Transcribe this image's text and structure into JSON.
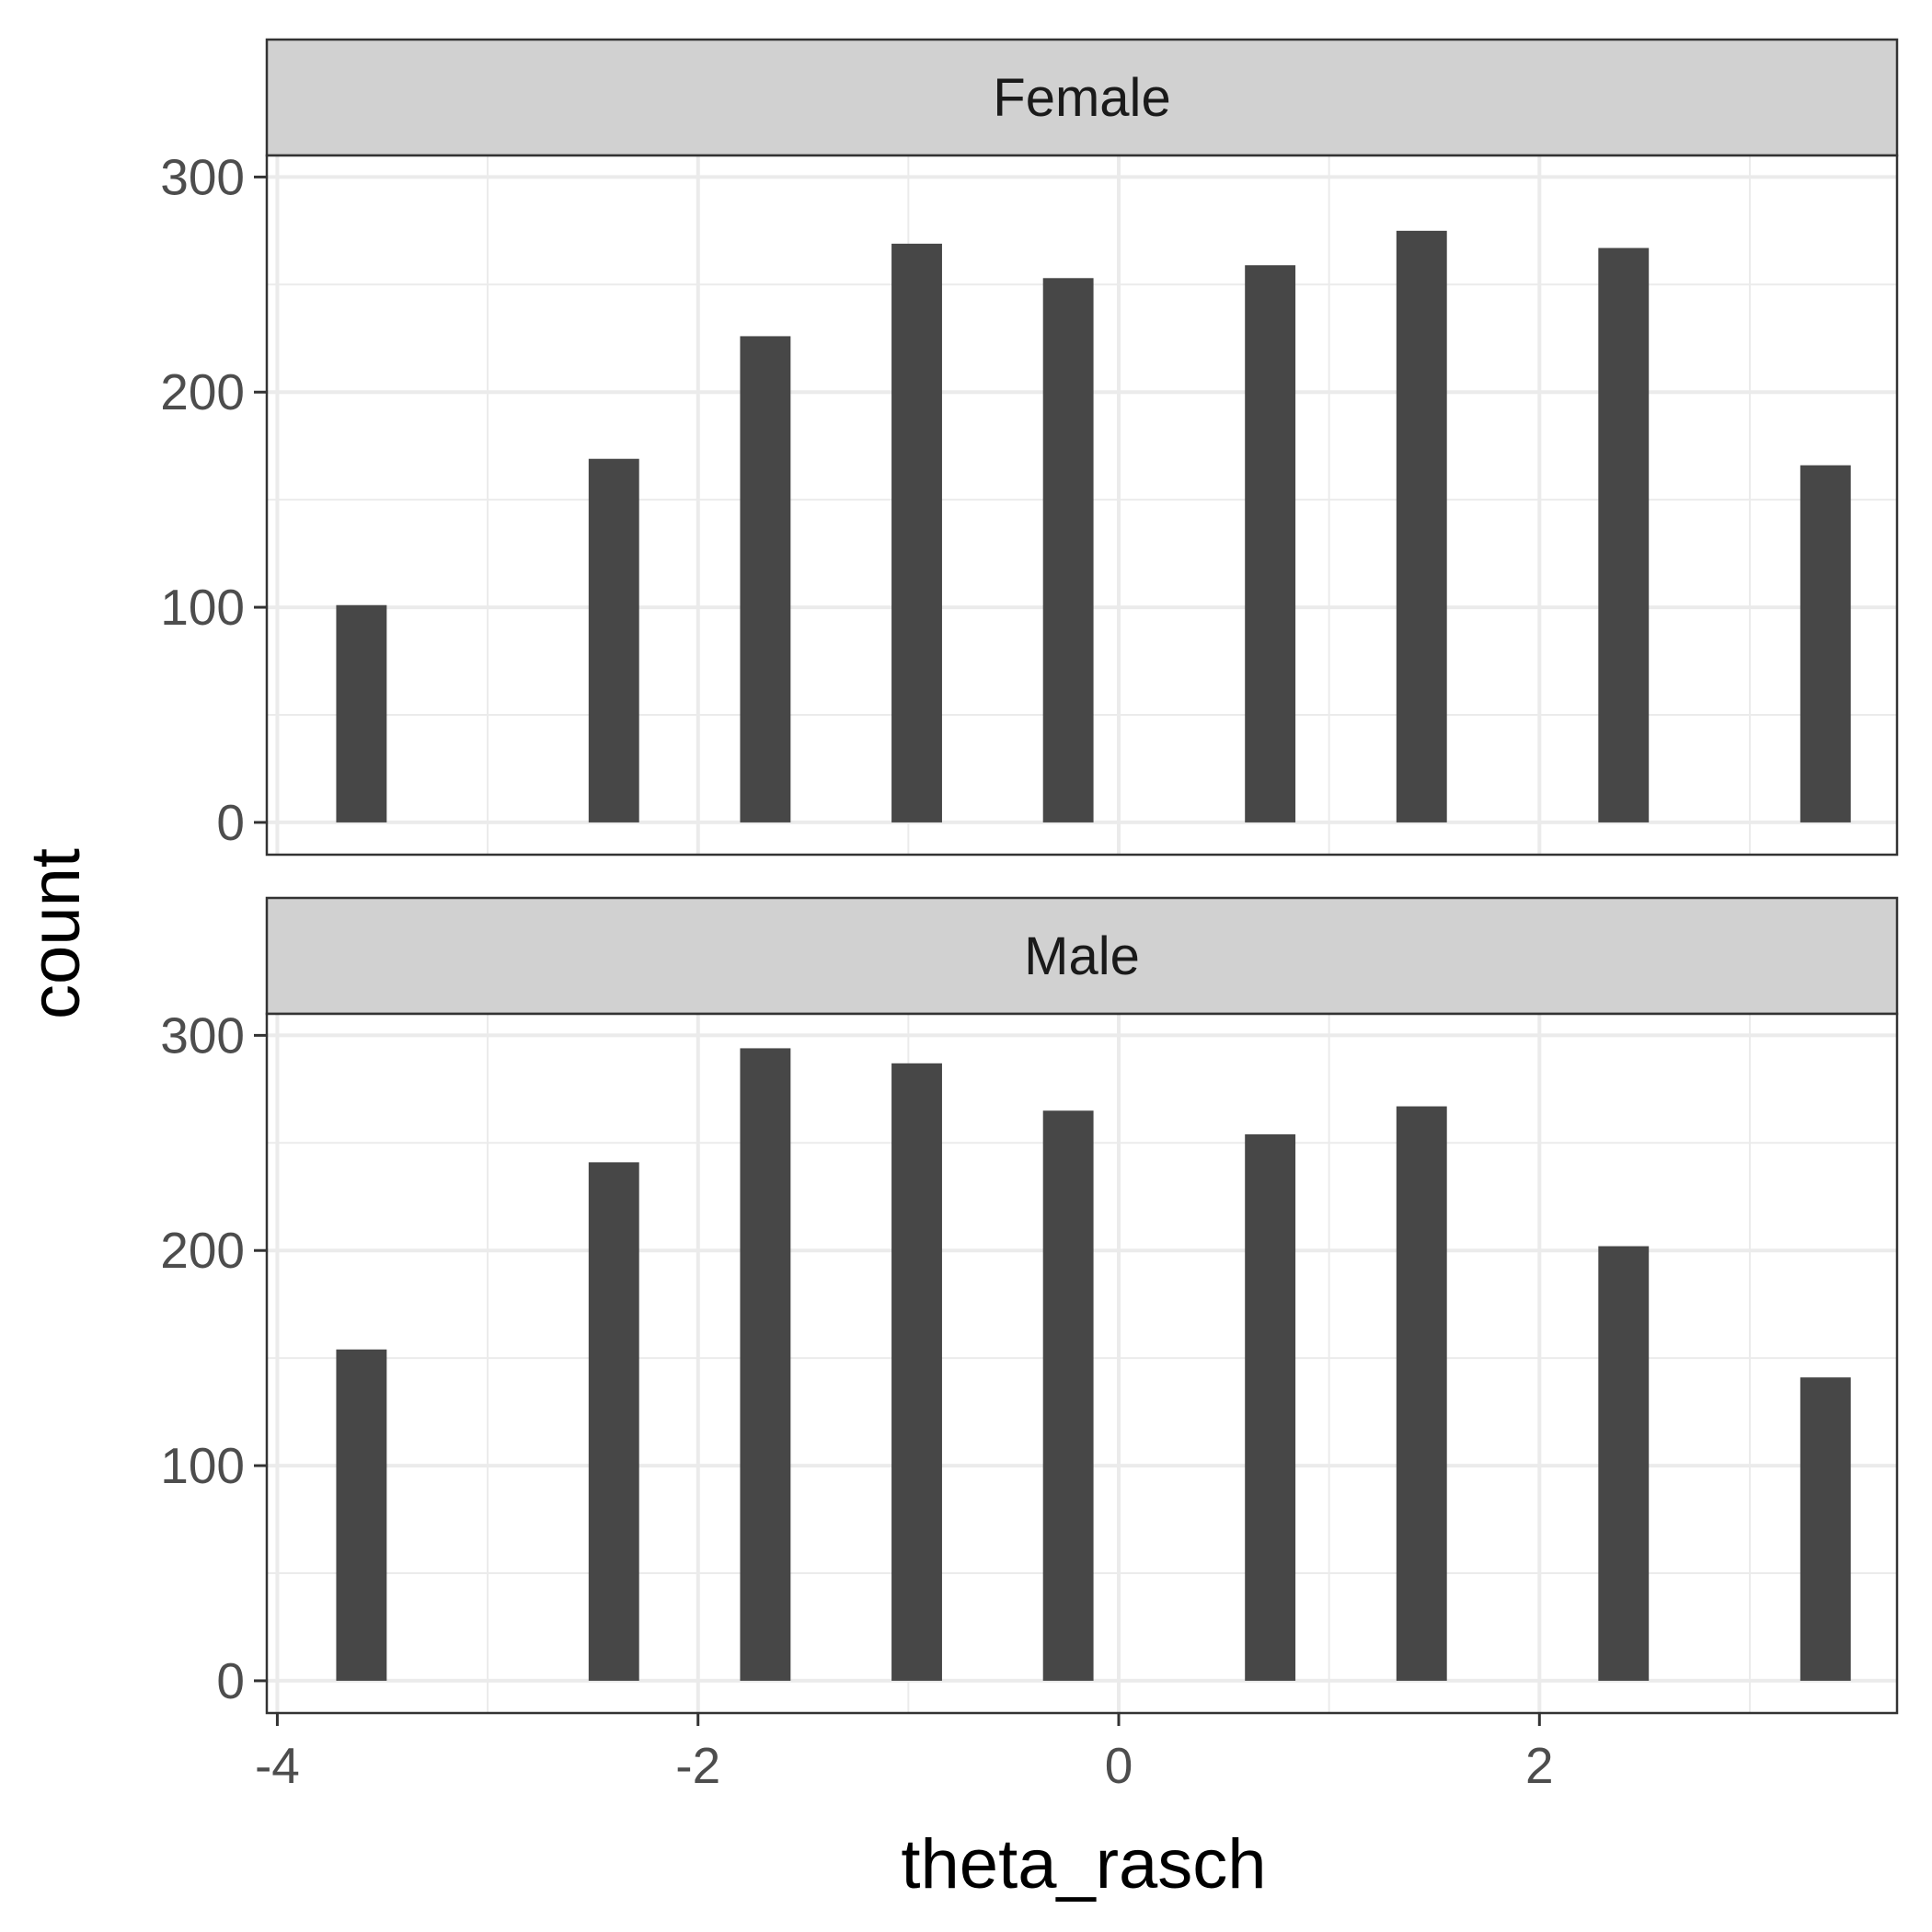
{
  "chart_data": {
    "type": "bar",
    "subtype": "histogram",
    "facet_wrap": true,
    "xlabel": "theta_rasch",
    "ylabel": "count",
    "xlim": [
      -4.05,
      3.7
    ],
    "ylim": [
      -15,
      310
    ],
    "x_ticks": [
      -4,
      -2,
      0,
      2
    ],
    "x_tick_labels": [
      "-4",
      "-2",
      "0",
      "2"
    ],
    "y_ticks": [
      0,
      100,
      200,
      300
    ],
    "y_tick_labels": [
      "0",
      "100",
      "200",
      "300"
    ],
    "grid": true,
    "bar_color": "#474747",
    "bar_width": 0.24,
    "panels": [
      {
        "label": "Female",
        "x": [
          -3.6,
          -2.4,
          -1.68,
          -0.96,
          -0.24,
          0.72,
          1.44,
          2.4,
          3.36
        ],
        "counts": [
          101,
          169,
          226,
          269,
          253,
          259,
          275,
          267,
          166
        ]
      },
      {
        "label": "Male",
        "x": [
          -3.6,
          -2.4,
          -1.68,
          -0.96,
          -0.24,
          0.72,
          1.44,
          2.4,
          3.36
        ],
        "counts": [
          154,
          241,
          294,
          287,
          265,
          254,
          267,
          202,
          141
        ]
      }
    ]
  }
}
